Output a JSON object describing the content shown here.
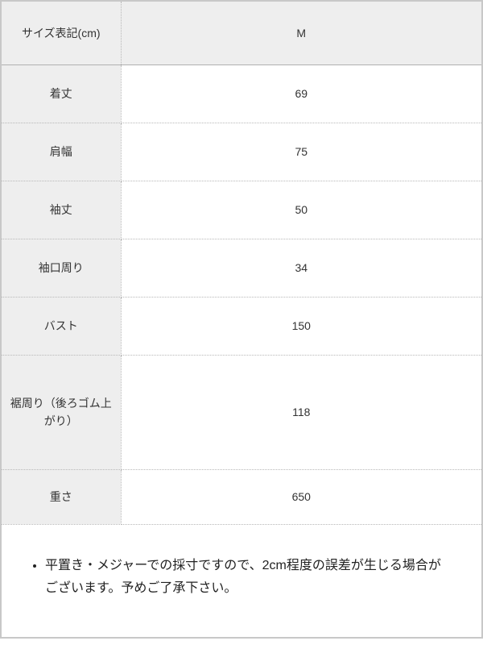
{
  "colors": {
    "header_bg": "#eeeeee",
    "outer_border": "#c8c8c8",
    "dotted_divider": "#b8b8b8",
    "header_divider": "#b0b0b0",
    "text": "#333333"
  },
  "size_table": {
    "header": {
      "label": "サイズ表記(cm)",
      "size": "M"
    },
    "rows": [
      {
        "label": "着丈",
        "value": "69"
      },
      {
        "label": "肩幅",
        "value": "75"
      },
      {
        "label": "袖丈",
        "value": "50"
      },
      {
        "label": "袖口周り",
        "value": "34"
      },
      {
        "label": "バスト",
        "value": "150"
      },
      {
        "label": "裾周り（後ろゴム上がり）",
        "value": "118"
      },
      {
        "label": "重さ",
        "value": "650"
      }
    ]
  },
  "note": {
    "text": "平置き・メジャーでの採寸ですので、2cm程度の誤差が生じる場合がございます。予めご了承下さい。"
  }
}
